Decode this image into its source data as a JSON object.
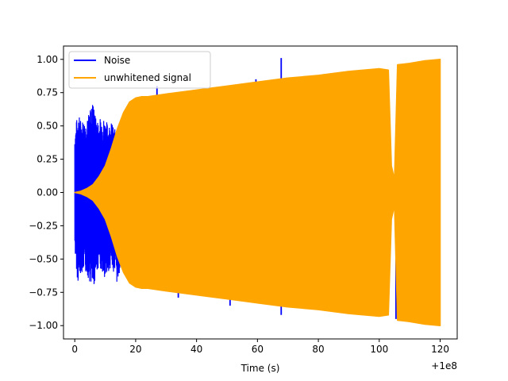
{
  "chart_data": {
    "type": "line",
    "title": "",
    "xlabel": "Time (s)",
    "ylabel": "",
    "x_offset_label": "+1e8",
    "xlim": [
      -3.7,
      125.6
    ],
    "ylim": [
      -1.1,
      1.1
    ],
    "xticks": [
      0,
      20,
      40,
      60,
      80,
      100,
      120
    ],
    "xtick_labels": [
      "0",
      "20",
      "40",
      "60",
      "80",
      "100",
      "120"
    ],
    "yticks": [
      1.0,
      0.75,
      0.5,
      0.25,
      0.0,
      -0.25,
      -0.5,
      -0.75,
      -1.0
    ],
    "ytick_labels": [
      "1.00",
      "0.75",
      "0.50",
      "0.25",
      "0.00",
      "−0.25",
      "−0.50",
      "−0.75",
      "−1.00"
    ],
    "grid": false,
    "legend_position": "upper-left",
    "series": [
      {
        "name": "Noise",
        "color": "#0000ff",
        "envelope_x": [
          0,
          1,
          2,
          3,
          4,
          5,
          6,
          7,
          8,
          9,
          10,
          11,
          12,
          13,
          14,
          15,
          16,
          17,
          18,
          19,
          20
        ],
        "envelope_upper": [
          0.47,
          0.6,
          0.55,
          0.55,
          0.55,
          0.62,
          0.7,
          0.55,
          0.55,
          0.58,
          0.55,
          0.52,
          0.53,
          0.48,
          0.45,
          0.45,
          0.4,
          0.38,
          0.4,
          0.3,
          0.2
        ],
        "envelope_lower": [
          -0.45,
          -0.69,
          -0.6,
          -0.6,
          -0.62,
          -0.68,
          -0.74,
          -0.62,
          -0.55,
          -0.6,
          -0.7,
          -0.6,
          -0.55,
          -0.62,
          -0.7,
          -0.55,
          -0.5,
          -0.45,
          -0.45,
          -0.35,
          -0.25
        ],
        "spikes": [
          {
            "x": 27,
            "y": 0.8
          },
          {
            "x": 34,
            "y": -0.79
          },
          {
            "x": 51,
            "y": -0.85
          },
          {
            "x": 59.5,
            "y": 0.85
          },
          {
            "x": 60,
            "y": -0.82
          },
          {
            "x": 67.8,
            "y": 1.01
          },
          {
            "x": 67.8,
            "y": -0.92
          },
          {
            "x": 105.5,
            "y": -0.95
          }
        ]
      },
      {
        "name": "unwhitened signal",
        "color": "#ffa500",
        "envelope_x": [
          0,
          2,
          4,
          6,
          8,
          10,
          12,
          14,
          16,
          18,
          20,
          22,
          24,
          30,
          40,
          50,
          60,
          70,
          80,
          90,
          100,
          103,
          104,
          105,
          106,
          110,
          115,
          120
        ],
        "envelope_upper": [
          0.0,
          0.01,
          0.03,
          0.06,
          0.12,
          0.2,
          0.33,
          0.48,
          0.6,
          0.68,
          0.71,
          0.72,
          0.72,
          0.74,
          0.77,
          0.8,
          0.83,
          0.86,
          0.88,
          0.91,
          0.93,
          0.92,
          0.2,
          0.1,
          0.96,
          0.97,
          0.99,
          1.0
        ],
        "envelope_lower": [
          0.0,
          -0.01,
          -0.03,
          -0.06,
          -0.12,
          -0.2,
          -0.33,
          -0.48,
          -0.6,
          -0.68,
          -0.71,
          -0.72,
          -0.72,
          -0.74,
          -0.77,
          -0.8,
          -0.83,
          -0.86,
          -0.88,
          -0.91,
          -0.93,
          -0.92,
          -0.2,
          -0.1,
          -0.96,
          -0.97,
          -0.99,
          -1.0
        ]
      }
    ]
  }
}
